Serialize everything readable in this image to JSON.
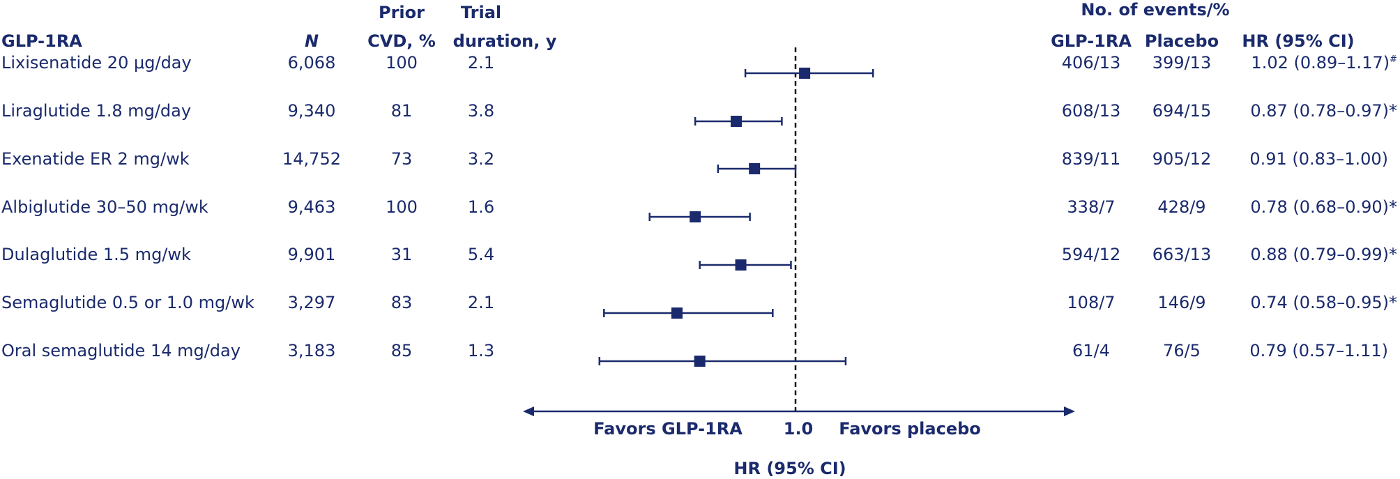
{
  "chart_data": {
    "type": "forest",
    "title": "",
    "xlabel": "HR (95% CI)",
    "reference_line": 1.0,
    "reference_label": "1.0",
    "favors_left": "Favors GLP-1RA",
    "favors_right": "Favors placebo",
    "colors": {
      "primary": "#1a2a6c"
    },
    "columns": {
      "drug": "GLP-1RA",
      "n": "N",
      "prior_cvd_line1": "Prior",
      "prior_cvd_line2": "CVD, %",
      "duration_line1": "Trial",
      "duration_line2": "duration, y",
      "events_group": "No. of events/%",
      "events_glp1": "GLP-1RA",
      "events_placebo": "Placebo",
      "hr": "HR (95% CI)"
    },
    "rows": [
      {
        "drug": "Lixisenatide 20 μg/day",
        "n": "6,068",
        "prior_cvd": "100",
        "duration": "2.1",
        "events_glp1": "406/13",
        "events_placebo": "399/13",
        "hr_text": "1.02 (0.89–1.17)",
        "mark": "#",
        "hr": 1.02,
        "lo": 0.89,
        "hi": 1.17
      },
      {
        "drug": "Liraglutide 1.8 mg/day",
        "n": "9,340",
        "prior_cvd": "81",
        "duration": "3.8",
        "events_glp1": "608/13",
        "events_placebo": "694/15",
        "hr_text": "0.87 (0.78–0.97)",
        "mark": "*",
        "hr": 0.87,
        "lo": 0.78,
        "hi": 0.97
      },
      {
        "drug": "Exenatide ER 2 mg/wk",
        "n": "14,752",
        "prior_cvd": "73",
        "duration": "3.2",
        "events_glp1": "839/11",
        "events_placebo": "905/12",
        "hr_text": "0.91 (0.83–1.00)",
        "mark": "",
        "hr": 0.91,
        "lo": 0.83,
        "hi": 1.0
      },
      {
        "drug": "Albiglutide 30–50 mg/wk",
        "n": "9,463",
        "prior_cvd": "100",
        "duration": "1.6",
        "events_glp1": "338/7",
        "events_placebo": "428/9",
        "hr_text": "0.78 (0.68–0.90)",
        "mark": "*",
        "hr": 0.78,
        "lo": 0.68,
        "hi": 0.9
      },
      {
        "drug": "Dulaglutide 1.5 mg/wk",
        "n": "9,901",
        "prior_cvd": "31",
        "duration": "5.4",
        "events_glp1": "594/12",
        "events_placebo": "663/13",
        "hr_text": "0.88 (0.79–0.99)",
        "mark": "*",
        "hr": 0.88,
        "lo": 0.79,
        "hi": 0.99
      },
      {
        "drug": "Semaglutide 0.5 or 1.0 mg/wk",
        "n": "3,297",
        "prior_cvd": "83",
        "duration": "2.1",
        "events_glp1": "108/7",
        "events_placebo": "146/9",
        "hr_text": "0.74 (0.58–0.95)",
        "mark": "*",
        "hr": 0.74,
        "lo": 0.58,
        "hi": 0.95
      },
      {
        "drug": "Oral semaglutide 14 mg/day",
        "n": "3,183",
        "prior_cvd": "85",
        "duration": "1.3",
        "events_glp1": "61/4",
        "events_placebo": "76/5",
        "hr_text": "0.79 (0.57–1.11)",
        "mark": "",
        "hr": 0.79,
        "lo": 0.57,
        "hi": 1.11
      }
    ]
  }
}
